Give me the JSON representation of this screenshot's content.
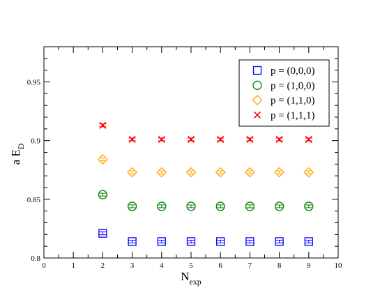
{
  "chart_data": {
    "type": "scatter",
    "xlabel": "N",
    "xlabel_sub": "exp",
    "ylabel": "a E",
    "ylabel_sub": "D",
    "xlim": [
      0,
      10
    ],
    "ylim": [
      0.8,
      0.98
    ],
    "x_ticks": [
      "0",
      "1",
      "2",
      "3",
      "4",
      "5",
      "6",
      "7",
      "8",
      "9",
      "10"
    ],
    "y_ticks": [
      {
        "value": 0.8,
        "label": "0.8"
      },
      {
        "value": 0.85,
        "label": "0.85"
      },
      {
        "value": 0.9,
        "label": "0.9"
      },
      {
        "value": 0.95,
        "label": "0.95"
      }
    ],
    "legend_position": "top-right",
    "grid": false,
    "series": [
      {
        "name": "p = (0,0,0)",
        "marker": "square",
        "color": "#0000ff",
        "x": [
          2,
          3,
          4,
          5,
          6,
          7,
          8,
          9
        ],
        "y": [
          0.821,
          0.814,
          0.814,
          0.814,
          0.814,
          0.814,
          0.814,
          0.814
        ]
      },
      {
        "name": "p = (1,0,0)",
        "marker": "circle",
        "color": "#008000",
        "x": [
          2,
          3,
          4,
          5,
          6,
          7,
          8,
          9
        ],
        "y": [
          0.854,
          0.844,
          0.844,
          0.844,
          0.844,
          0.844,
          0.844,
          0.844
        ]
      },
      {
        "name": "p = (1,1,0)",
        "marker": "diamond",
        "color": "#ffa500",
        "x": [
          2,
          3,
          4,
          5,
          6,
          7,
          8,
          9
        ],
        "y": [
          0.884,
          0.873,
          0.873,
          0.873,
          0.873,
          0.873,
          0.873,
          0.873
        ]
      },
      {
        "name": "p = (1,1,1)",
        "marker": "x",
        "color": "#ff0000",
        "x": [
          2,
          3,
          4,
          5,
          6,
          7,
          8,
          9
        ],
        "y": [
          0.913,
          0.901,
          0.901,
          0.901,
          0.901,
          0.901,
          0.901,
          0.901
        ]
      }
    ]
  }
}
